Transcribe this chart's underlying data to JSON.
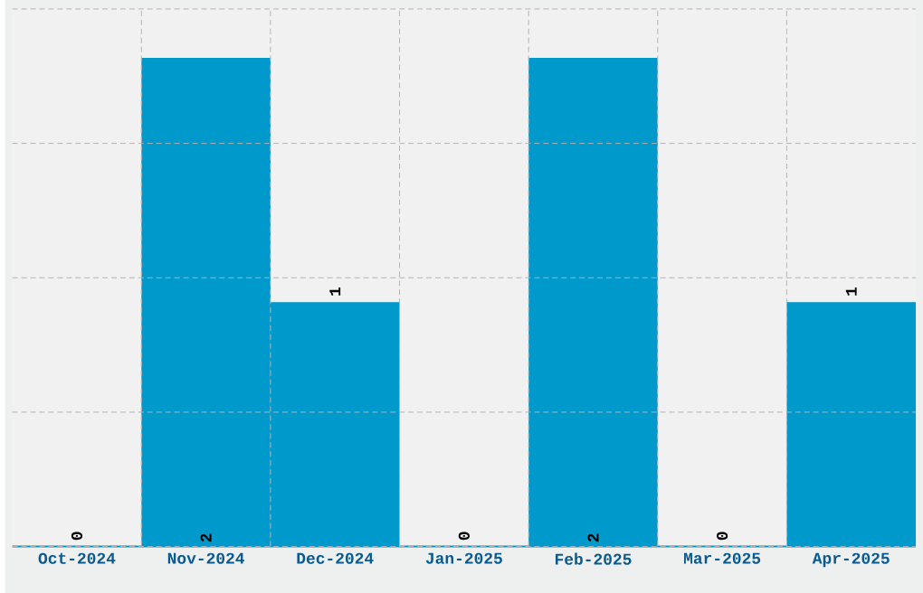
{
  "chart_data": {
    "type": "bar",
    "categories": [
      "Oct-2024",
      "Nov-2024",
      "Dec-2024",
      "Jan-2025",
      "Feb-2025",
      "Mar-2025",
      "Apr-2025"
    ],
    "values": [
      0,
      2,
      1,
      0,
      2,
      0,
      1
    ],
    "color": "#0099cc",
    "ylim": [
      0,
      2.2
    ],
    "yticks": [
      {
        "value": 0,
        "label": null
      },
      {
        "value": 0.55,
        "label": null
      },
      {
        "value": 1.1,
        "label": null
      },
      {
        "value": 1.65,
        "label": null
      },
      {
        "value": 2.2,
        "label": null
      }
    ],
    "grid": true,
    "data_labels": true,
    "tick_labels": "x"
  }
}
